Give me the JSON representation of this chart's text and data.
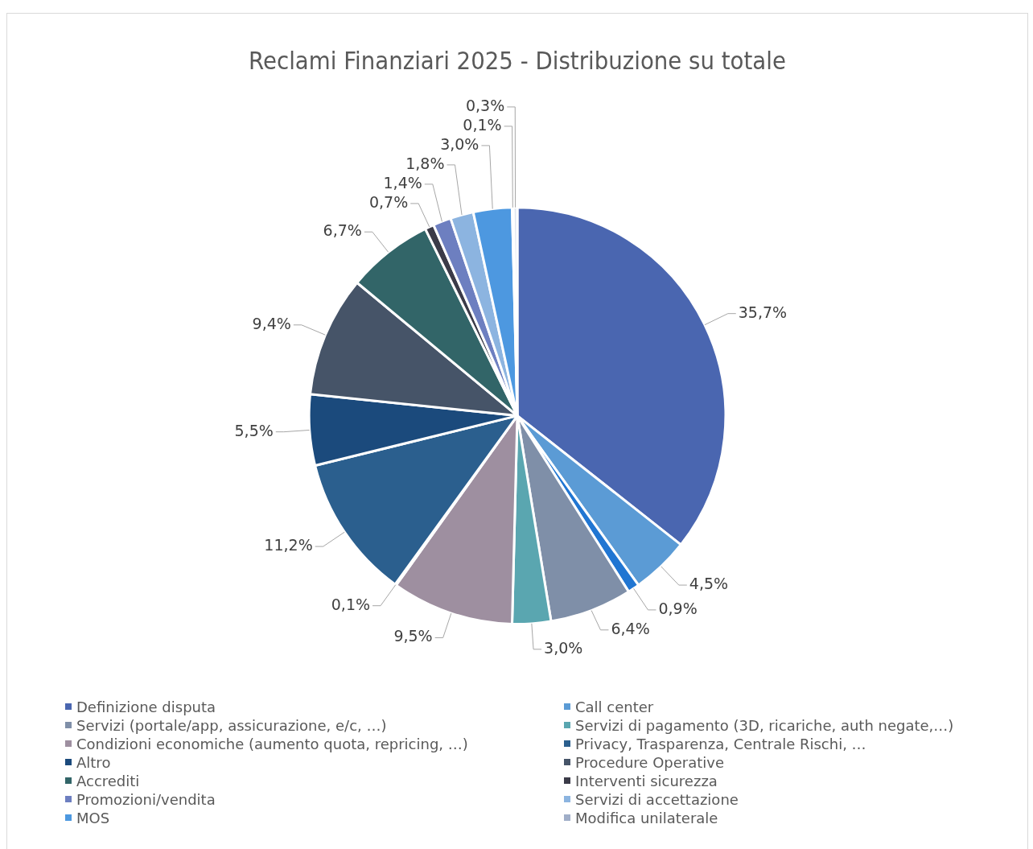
{
  "chart_data": {
    "type": "pie",
    "title": "Reclami Finanziari 2025 - Distribuzione su totale",
    "categories": [
      "Definizione disputa",
      "Call center",
      null,
      "Servizi (portale/app, assicurazione, e/c, …)",
      "Servizi di pagamento (3D, ricariche, auth negate,…)",
      "Condizioni economiche (aumento quota, repricing, …)",
      null,
      "Privacy, Trasparenza, Centrale Rischi, …",
      "Altro",
      "Procedure Operative",
      "Accrediti",
      "Interventi sicurezza",
      "Promozioni/vendita",
      "Servizi di accettazione",
      "MOS",
      "Modifica unilaterale",
      null
    ],
    "values": [
      35.7,
      4.5,
      0.9,
      6.4,
      3.0,
      9.5,
      0.1,
      11.2,
      5.5,
      9.4,
      6.7,
      0.7,
      1.4,
      1.8,
      3.0,
      0.1,
      0.3
    ],
    "value_labels": [
      "35,7%",
      "4,5%",
      "0,9%",
      "6,4%",
      "3,0%",
      "9,5%",
      "0,1%",
      "11,2%",
      "5,5%",
      "9,4%",
      "6,7%",
      "0,7%",
      "1,4%",
      "1,8%",
      "3,0%",
      "0,1%",
      "0,3%"
    ],
    "colors": [
      "#4a66b0",
      "#5b9bd5",
      "#2176d2",
      "#7f8fa8",
      "#5aa6b0",
      "#9e8fa0",
      "#1f2d50",
      "#2b5f8e",
      "#1b4a7c",
      "#465468",
      "#326568",
      "#3b3b48",
      "#6d7fc0",
      "#8cb4e0",
      "#4d98e0",
      "#a0aec8",
      "#dfe6f0"
    ],
    "legend": "bottom"
  }
}
